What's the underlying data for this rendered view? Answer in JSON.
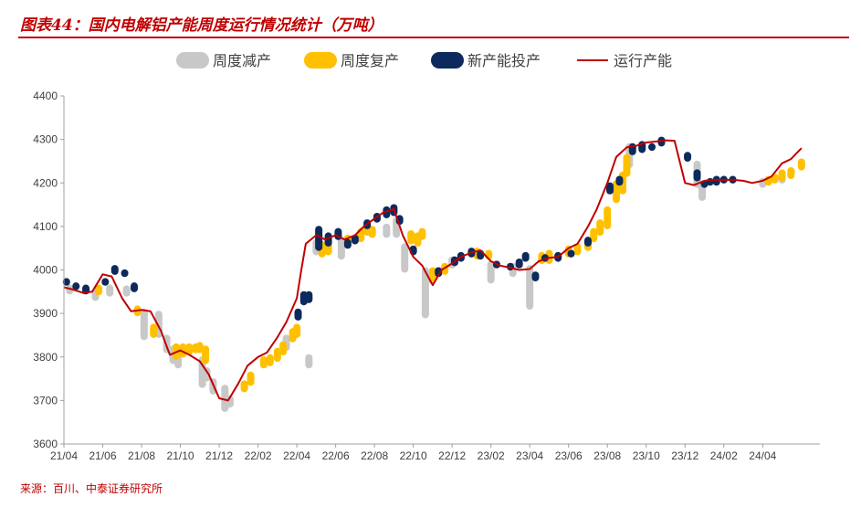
{
  "header": {
    "title": "图表44：国内电解铝产能周度运行情况统计（万吨）"
  },
  "footer": {
    "source": "来源：百川、中泰证券研究所"
  },
  "colors": {
    "reduce": "#c8c8c8",
    "resume": "#ffc000",
    "new": "#0d2a5c",
    "running": "#c00000",
    "accent": "#c00000"
  },
  "chart_data": {
    "type": "line",
    "ylim": [
      3600,
      4400
    ],
    "yticks": [
      3600,
      3700,
      3800,
      3900,
      4000,
      4100,
      4200,
      4300,
      4400
    ],
    "x_start": "2021-04",
    "x_end": "2024-06",
    "xticks": [
      "21/04",
      "21/06",
      "21/08",
      "21/10",
      "21/12",
      "22/02",
      "22/04",
      "22/06",
      "22/08",
      "22/10",
      "22/12",
      "23/02",
      "23/04",
      "23/06",
      "23/08",
      "23/10",
      "23/12",
      "24/02",
      "24/04"
    ],
    "legend": [
      "周度减产",
      "周度复产",
      "新产能投产",
      "运行产能"
    ],
    "legend_position": "top",
    "series": [
      {
        "name": "运行产能",
        "points": [
          [
            "2021-04-01",
            3960
          ],
          [
            "2021-04-15",
            3955
          ],
          [
            "2021-05-01",
            3947
          ],
          [
            "2021-05-15",
            3950
          ],
          [
            "2021-06-01",
            3990
          ],
          [
            "2021-06-15",
            3985
          ],
          [
            "2021-07-01",
            3935
          ],
          [
            "2021-07-15",
            3905
          ],
          [
            "2021-08-01",
            3908
          ],
          [
            "2021-08-15",
            3905
          ],
          [
            "2021-09-01",
            3860
          ],
          [
            "2021-09-15",
            3805
          ],
          [
            "2021-10-01",
            3815
          ],
          [
            "2021-10-15",
            3805
          ],
          [
            "2021-11-01",
            3790
          ],
          [
            "2021-11-15",
            3760
          ],
          [
            "2021-12-01",
            3705
          ],
          [
            "2021-12-15",
            3700
          ],
          [
            "2022-01-01",
            3740
          ],
          [
            "2022-01-15",
            3780
          ],
          [
            "2022-02-01",
            3800
          ],
          [
            "2022-02-15",
            3810
          ],
          [
            "2022-03-01",
            3845
          ],
          [
            "2022-03-15",
            3880
          ],
          [
            "2022-04-01",
            3935
          ],
          [
            "2022-04-08",
            4000
          ],
          [
            "2022-04-15",
            4060
          ],
          [
            "2022-05-01",
            4080
          ],
          [
            "2022-05-15",
            4070
          ],
          [
            "2022-06-01",
            4080
          ],
          [
            "2022-06-15",
            4070
          ],
          [
            "2022-07-01",
            4080
          ],
          [
            "2022-07-15",
            4100
          ],
          [
            "2022-08-01",
            4118
          ],
          [
            "2022-08-15",
            4132
          ],
          [
            "2022-09-01",
            4140
          ],
          [
            "2022-09-15",
            4080
          ],
          [
            "2022-10-01",
            4030
          ],
          [
            "2022-10-15",
            4010
          ],
          [
            "2022-11-01",
            3965
          ],
          [
            "2022-11-15",
            4000
          ],
          [
            "2022-12-01",
            4015
          ],
          [
            "2022-12-15",
            4030
          ],
          [
            "2023-01-01",
            4040
          ],
          [
            "2023-01-15",
            4045
          ],
          [
            "2023-02-01",
            4020
          ],
          [
            "2023-02-15",
            4010
          ],
          [
            "2023-03-01",
            4005
          ],
          [
            "2023-03-15",
            4000
          ],
          [
            "2023-04-01",
            4002
          ],
          [
            "2023-04-15",
            4020
          ],
          [
            "2023-05-01",
            4028
          ],
          [
            "2023-05-15",
            4030
          ],
          [
            "2023-06-01",
            4050
          ],
          [
            "2023-06-15",
            4060
          ],
          [
            "2023-07-01",
            4100
          ],
          [
            "2023-07-15",
            4140
          ],
          [
            "2023-08-01",
            4200
          ],
          [
            "2023-08-15",
            4260
          ],
          [
            "2023-09-01",
            4282
          ],
          [
            "2023-09-15",
            4285
          ],
          [
            "2023-10-01",
            4293
          ],
          [
            "2023-10-15",
            4295
          ],
          [
            "2023-11-01",
            4298
          ],
          [
            "2023-11-15",
            4297
          ],
          [
            "2023-12-01",
            4200
          ],
          [
            "2023-12-15",
            4195
          ],
          [
            "2024-01-01",
            4205
          ],
          [
            "2024-01-15",
            4207
          ],
          [
            "2024-02-01",
            4207
          ],
          [
            "2024-02-15",
            4207
          ],
          [
            "2024-03-01",
            4205
          ],
          [
            "2024-03-15",
            4200
          ],
          [
            "2024-04-01",
            4205
          ],
          [
            "2024-04-15",
            4215
          ],
          [
            "2024-05-01",
            4245
          ],
          [
            "2024-05-15",
            4255
          ],
          [
            "2024-06-01",
            4280
          ]
        ]
      },
      {
        "name": "周度减产",
        "bars": [
          [
            "2021-04-10",
            3950,
            3960
          ],
          [
            "2021-05-20",
            3935,
            3948
          ],
          [
            "2021-06-12",
            3945,
            3960
          ],
          [
            "2021-07-08",
            3945,
            3958
          ],
          [
            "2021-08-05",
            3845,
            3905
          ],
          [
            "2021-08-28",
            3850,
            3900
          ],
          [
            "2021-09-10",
            3815,
            3845
          ],
          [
            "2021-09-20",
            3790,
            3820
          ],
          [
            "2021-09-28",
            3780,
            3805
          ],
          [
            "2021-11-05",
            3735,
            3795
          ],
          [
            "2021-11-12",
            3750,
            3770
          ],
          [
            "2021-11-22",
            3720,
            3745
          ],
          [
            "2021-12-10",
            3680,
            3730
          ],
          [
            "2021-12-18",
            3690,
            3705
          ],
          [
            "2022-03-15",
            3820,
            3845
          ],
          [
            "2022-04-20",
            3780,
            3800
          ],
          [
            "2022-05-01",
            4040,
            4065
          ],
          [
            "2022-06-10",
            4030,
            4070
          ],
          [
            "2022-08-20",
            4080,
            4100
          ],
          [
            "2022-09-05",
            4080,
            4115
          ],
          [
            "2022-09-18",
            4000,
            4055
          ],
          [
            "2022-10-20",
            3895,
            4000
          ],
          [
            "2022-10-28",
            3975,
            3990
          ],
          [
            "2022-12-01",
            4010,
            4025
          ],
          [
            "2023-02-01",
            3975,
            4015
          ],
          [
            "2023-03-05",
            3990,
            4010
          ],
          [
            "2023-04-01",
            3915,
            4005
          ],
          [
            "2023-09-05",
            4240,
            4285
          ],
          [
            "2023-12-20",
            4195,
            4245
          ],
          [
            "2023-12-28",
            4165,
            4200
          ],
          [
            "2024-04-01",
            4195,
            4205
          ],
          [
            "2024-05-01",
            4205,
            4218
          ]
        ]
      },
      {
        "name": "周度复产",
        "bars": [
          [
            "2021-05-25",
            3948,
            3960
          ],
          [
            "2021-07-25",
            3900,
            3912
          ],
          [
            "2021-08-20",
            3850,
            3870
          ],
          [
            "2021-09-25",
            3800,
            3825
          ],
          [
            "2021-10-05",
            3805,
            3825
          ],
          [
            "2021-10-15",
            3810,
            3825
          ],
          [
            "2021-10-25",
            3815,
            3825
          ],
          [
            "2021-11-01",
            3815,
            3828
          ],
          [
            "2021-11-10",
            3790,
            3820
          ],
          [
            "2022-01-10",
            3725,
            3740
          ],
          [
            "2022-01-20",
            3740,
            3760
          ],
          [
            "2022-02-10",
            3780,
            3795
          ],
          [
            "2022-02-20",
            3785,
            3800
          ],
          [
            "2022-03-01",
            3795,
            3815
          ],
          [
            "2022-03-10",
            3810,
            3830
          ],
          [
            "2022-03-25",
            3840,
            3860
          ],
          [
            "2022-04-01",
            3850,
            3870
          ],
          [
            "2022-05-10",
            4035,
            4060
          ],
          [
            "2022-05-20",
            4040,
            4060
          ],
          [
            "2022-06-20",
            4055,
            4075
          ],
          [
            "2022-07-10",
            4070,
            4090
          ],
          [
            "2022-07-20",
            4085,
            4100
          ],
          [
            "2022-07-28",
            4080,
            4095
          ],
          [
            "2022-09-28",
            4065,
            4085
          ],
          [
            "2022-10-08",
            4060,
            4080
          ],
          [
            "2022-10-15",
            4075,
            4090
          ],
          [
            "2022-11-01",
            3980,
            4000
          ],
          [
            "2022-11-20",
            3995,
            4010
          ],
          [
            "2023-01-10",
            4030,
            4045
          ],
          [
            "2023-01-28",
            4030,
            4040
          ],
          [
            "2023-04-20",
            4020,
            4035
          ],
          [
            "2023-05-01",
            4020,
            4040
          ],
          [
            "2023-05-15",
            4025,
            4035
          ],
          [
            "2023-06-01",
            4035,
            4050
          ],
          [
            "2023-06-15",
            4040,
            4055
          ],
          [
            "2023-07-01",
            4050,
            4065
          ],
          [
            "2023-07-10",
            4070,
            4090
          ],
          [
            "2023-07-20",
            4085,
            4110
          ],
          [
            "2023-08-01",
            4100,
            4140
          ],
          [
            "2023-08-15",
            4160,
            4200
          ],
          [
            "2023-08-25",
            4180,
            4220
          ],
          [
            "2023-09-01",
            4220,
            4260
          ],
          [
            "2024-04-10",
            4200,
            4210
          ],
          [
            "2024-04-20",
            4205,
            4215
          ],
          [
            "2024-05-01",
            4210,
            4225
          ],
          [
            "2024-05-15",
            4215,
            4230
          ],
          [
            "2024-06-01",
            4235,
            4250
          ]
        ]
      },
      {
        "name": "新产能投产",
        "bars": [
          [
            "2021-04-05",
            3970,
            3975
          ],
          [
            "2021-04-20",
            3960,
            3965
          ],
          [
            "2021-05-05",
            3950,
            3960
          ],
          [
            "2021-06-05",
            3970,
            3975
          ],
          [
            "2021-06-20",
            3995,
            4005
          ],
          [
            "2021-07-05",
            3990,
            3995
          ],
          [
            "2021-07-20",
            3955,
            3965
          ],
          [
            "2022-04-03",
            3890,
            3905
          ],
          [
            "2022-04-12",
            3925,
            3945
          ],
          [
            "2022-04-20",
            3930,
            3945
          ],
          [
            "2022-05-05",
            4050,
            4095
          ],
          [
            "2022-05-20",
            4060,
            4080
          ],
          [
            "2022-06-05",
            4075,
            4090
          ],
          [
            "2022-06-20",
            4055,
            4065
          ],
          [
            "2022-07-01",
            4065,
            4075
          ],
          [
            "2022-07-20",
            4100,
            4110
          ],
          [
            "2022-08-05",
            4115,
            4125
          ],
          [
            "2022-08-20",
            4125,
            4140
          ],
          [
            "2022-09-01",
            4130,
            4145
          ],
          [
            "2022-09-10",
            4110,
            4120
          ],
          [
            "2022-10-01",
            4040,
            4050
          ],
          [
            "2022-11-10",
            3990,
            4000
          ],
          [
            "2022-12-05",
            4015,
            4025
          ],
          [
            "2022-12-15",
            4025,
            4035
          ],
          [
            "2023-01-01",
            4035,
            4045
          ],
          [
            "2023-01-15",
            4030,
            4040
          ],
          [
            "2023-02-10",
            4010,
            4015
          ],
          [
            "2023-03-01",
            4005,
            4010
          ],
          [
            "2023-03-15",
            4010,
            4020
          ],
          [
            "2023-03-25",
            4025,
            4035
          ],
          [
            "2023-04-10",
            3980,
            3990
          ],
          [
            "2023-04-25",
            4025,
            4030
          ],
          [
            "2023-05-15",
            4025,
            4035
          ],
          [
            "2023-06-05",
            4035,
            4040
          ],
          [
            "2023-07-01",
            4060,
            4070
          ],
          [
            "2023-08-05",
            4180,
            4195
          ],
          [
            "2023-08-20",
            4200,
            4210
          ],
          [
            "2023-09-10",
            4270,
            4285
          ],
          [
            "2023-09-25",
            4275,
            4290
          ],
          [
            "2023-10-10",
            4280,
            4285
          ],
          [
            "2023-10-25",
            4290,
            4300
          ],
          [
            "2023-12-05",
            4255,
            4265
          ],
          [
            "2023-12-20",
            4210,
            4225
          ],
          [
            "2024-01-01",
            4195,
            4200
          ],
          [
            "2024-01-10",
            4200,
            4205
          ],
          [
            "2024-01-20",
            4200,
            4210
          ],
          [
            "2024-02-01",
            4205,
            4210
          ],
          [
            "2024-02-15",
            4205,
            4210
          ]
        ]
      }
    ]
  }
}
